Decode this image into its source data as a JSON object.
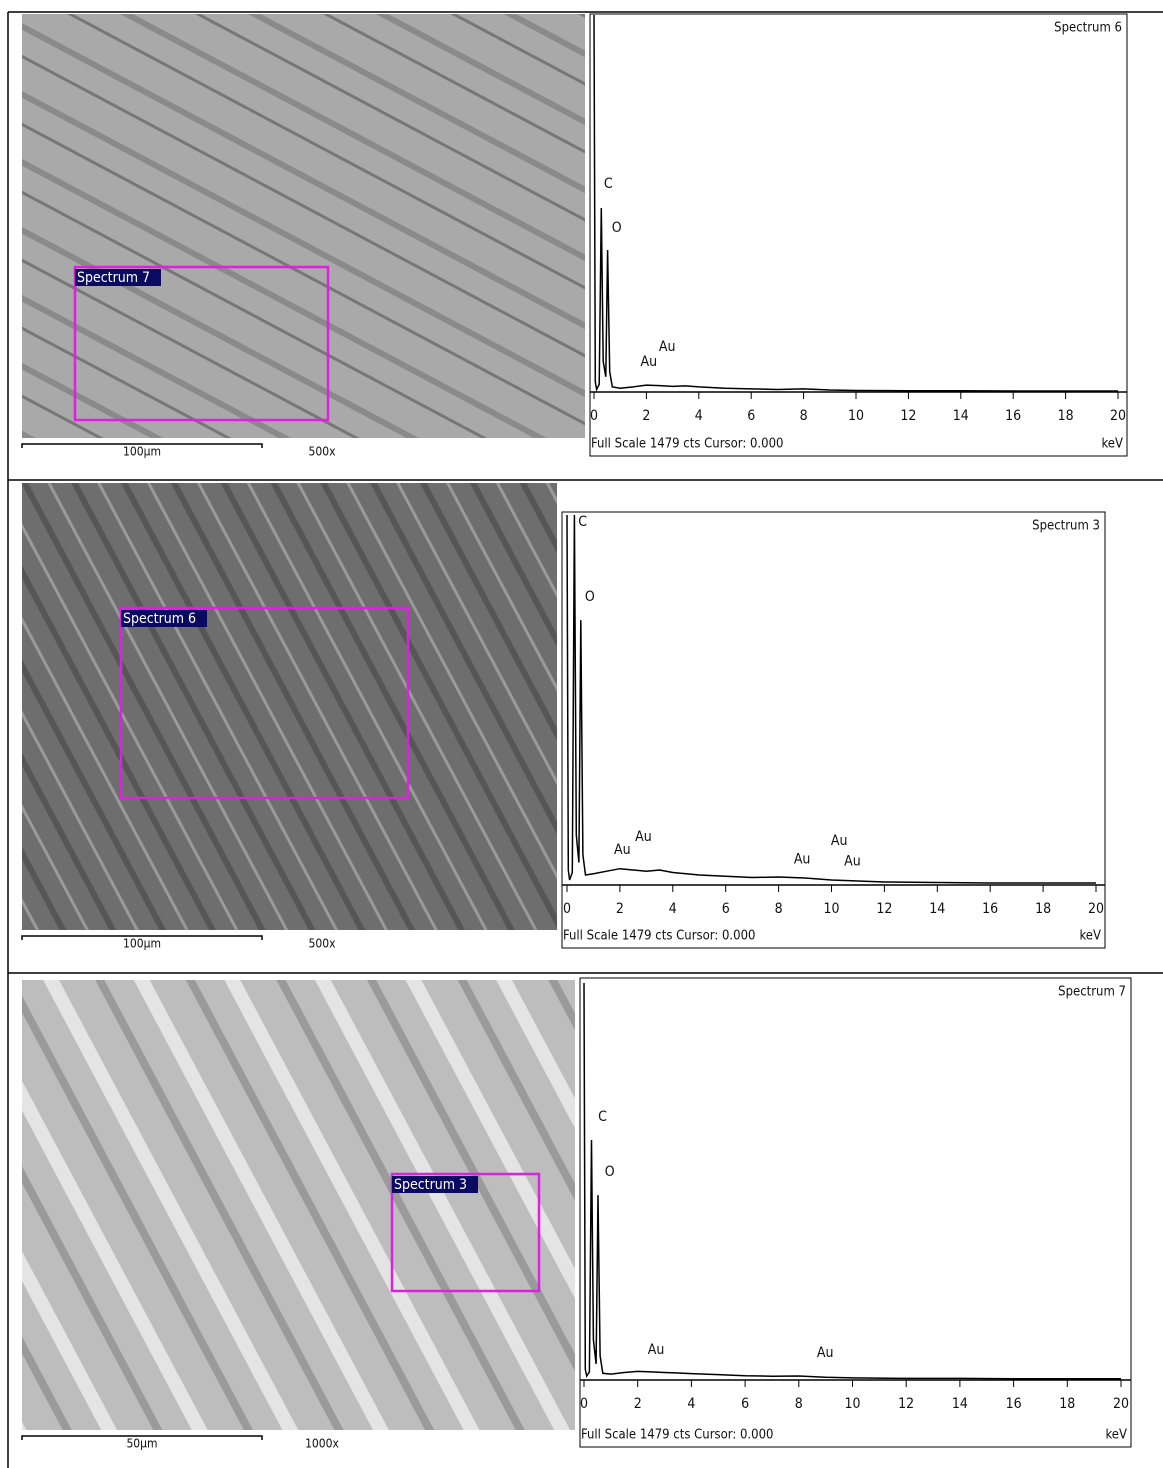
{
  "images": [
    {
      "region_label": "Spectrum 7",
      "scale_bar": "100µm",
      "magnification": "500x"
    },
    {
      "region_label": "Spectrum 6",
      "scale_bar": "100µm",
      "magnification": "500x"
    },
    {
      "region_label": "Spectrum 3",
      "scale_bar": "50µm",
      "magnification": "1000x"
    }
  ],
  "chart_data": [
    {
      "type": "line",
      "title": "Spectrum 6",
      "x_label": "keV",
      "footer": "Full Scale 1479 cts Cursor: 0.000",
      "x": [
        0,
        0.05,
        0.1,
        0.2,
        0.28,
        0.35,
        0.45,
        0.52,
        0.6,
        0.7,
        1,
        1.5,
        2,
        2.5,
        3,
        3.5,
        4,
        5,
        6,
        7,
        8,
        9,
        10,
        12,
        14,
        16,
        18,
        20
      ],
      "series": [
        {
          "color": "#000000",
          "values": [
            1479,
            40,
            10,
            30,
            722,
            120,
            60,
            557,
            80,
            20,
            15,
            20,
            27,
            25,
            22,
            24,
            20,
            15,
            12,
            10,
            12,
            8,
            6,
            5,
            5,
            4,
            4,
            4
          ]
        }
      ],
      "xlim": [
        0,
        20.2
      ],
      "xticks": [
        0,
        2,
        4,
        6,
        8,
        10,
        12,
        14,
        16,
        18,
        20
      ],
      "ylim": [
        0,
        1479
      ],
      "annotations": [
        {
          "text": "C",
          "x": 0.3,
          "y": 785
        },
        {
          "text": "O",
          "x": 0.6,
          "y": 612
        },
        {
          "text": "Au",
          "x": 1.7,
          "y": 86
        },
        {
          "text": "Au",
          "x": 2.4,
          "y": 145
        }
      ]
    },
    {
      "type": "line",
      "title": "Spectrum 3",
      "x_label": "keV",
      "footer": "Full Scale 1479 cts Cursor: 0.000",
      "x": [
        0,
        0.05,
        0.1,
        0.2,
        0.28,
        0.35,
        0.45,
        0.52,
        0.6,
        0.7,
        1,
        1.5,
        2,
        2.5,
        3,
        3.5,
        4,
        5,
        6,
        7,
        8,
        9,
        10,
        12,
        14,
        16,
        18,
        20
      ],
      "series": [
        {
          "color": "#000000",
          "values": [
            1479,
            60,
            20,
            50,
            1479,
            200,
            90,
            1059,
            120,
            40,
            45,
            55,
            65,
            60,
            55,
            60,
            50,
            40,
            35,
            30,
            32,
            28,
            20,
            12,
            10,
            8,
            8,
            8
          ]
        }
      ],
      "xlim": [
        0,
        20.2
      ],
      "xticks": [
        0,
        2,
        4,
        6,
        8,
        10,
        12,
        14,
        16,
        18,
        20
      ],
      "ylim": [
        0,
        1479
      ],
      "annotations": [
        {
          "text": "C",
          "x": 0.35,
          "y": 1419
        },
        {
          "text": "O",
          "x": 0.6,
          "y": 1120
        },
        {
          "text": "Au",
          "x": 1.7,
          "y": 108
        },
        {
          "text": "Au",
          "x": 2.5,
          "y": 160
        },
        {
          "text": "Au",
          "x": 8.5,
          "y": 70
        },
        {
          "text": "Au",
          "x": 9.9,
          "y": 144
        },
        {
          "text": "Au",
          "x": 10.4,
          "y": 62
        }
      ]
    },
    {
      "type": "line",
      "title": "Spectrum 7",
      "x_label": "keV",
      "footer": "Full Scale 1479 cts Cursor: 0.000",
      "x": [
        0,
        0.05,
        0.1,
        0.2,
        0.28,
        0.35,
        0.45,
        0.52,
        0.6,
        0.7,
        1,
        1.5,
        2,
        2.5,
        3,
        3.5,
        4,
        5,
        6,
        7,
        8,
        9,
        10,
        12,
        14,
        16,
        18,
        20
      ],
      "series": [
        {
          "color": "#000000",
          "values": [
            1479,
            40,
            15,
            30,
            894,
            150,
            60,
            689,
            90,
            25,
            22,
            28,
            32,
            30,
            28,
            26,
            24,
            20,
            16,
            14,
            15,
            10,
            8,
            6,
            6,
            5,
            5,
            5
          ]
        }
      ],
      "xlim": [
        0,
        20.2
      ],
      "xticks": [
        0,
        2,
        4,
        6,
        8,
        10,
        12,
        14,
        16,
        18,
        20
      ],
      "ylim": [
        0,
        1479
      ],
      "annotations": [
        {
          "text": "C",
          "x": 0.45,
          "y": 950
        },
        {
          "text": "O",
          "x": 0.7,
          "y": 745
        },
        {
          "text": "Au",
          "x": 2.3,
          "y": 82
        },
        {
          "text": "Au",
          "x": 8.6,
          "y": 70
        }
      ]
    }
  ]
}
